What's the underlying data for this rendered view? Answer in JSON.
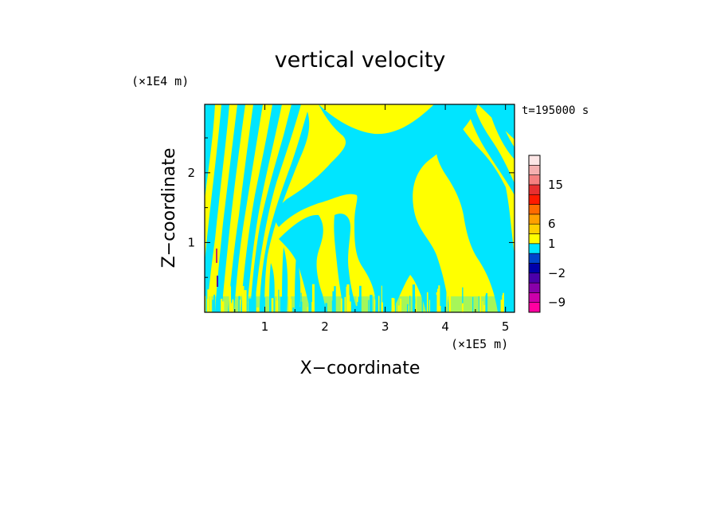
{
  "chart_data": {
    "type": "heatmap",
    "title": "vertical velocity",
    "xlabel": "X−coordinate",
    "ylabel": "Z−coordinate",
    "x_unit": "(×1E5 m)",
    "z_unit": "(×1E4 m)",
    "time_label": "t=195000 s",
    "xlim": [
      0,
      5.15
    ],
    "zlim": [
      0,
      2.98
    ],
    "x_ticks": [
      "1",
      "2",
      "3",
      "4",
      "5"
    ],
    "z_ticks": [
      "1",
      "2"
    ],
    "field_colors": {
      "positive": "#ffff00",
      "negative": "#00e5ff"
    },
    "colorbar": {
      "labels": [
        "15",
        "6",
        "1",
        "−2",
        "−9"
      ],
      "colors": [
        "#ff00a0",
        "#cc00aa",
        "#8800aa",
        "#4b00aa",
        "#0000aa",
        "#0044cc",
        "#00e5ff",
        "#ffff00",
        "#ffd000",
        "#ffa000",
        "#ff6a00",
        "#ff1a00",
        "#e83030",
        "#f58080",
        "#f5b0b0",
        "#fde6e6"
      ]
    },
    "grid": false,
    "legend": "right"
  }
}
